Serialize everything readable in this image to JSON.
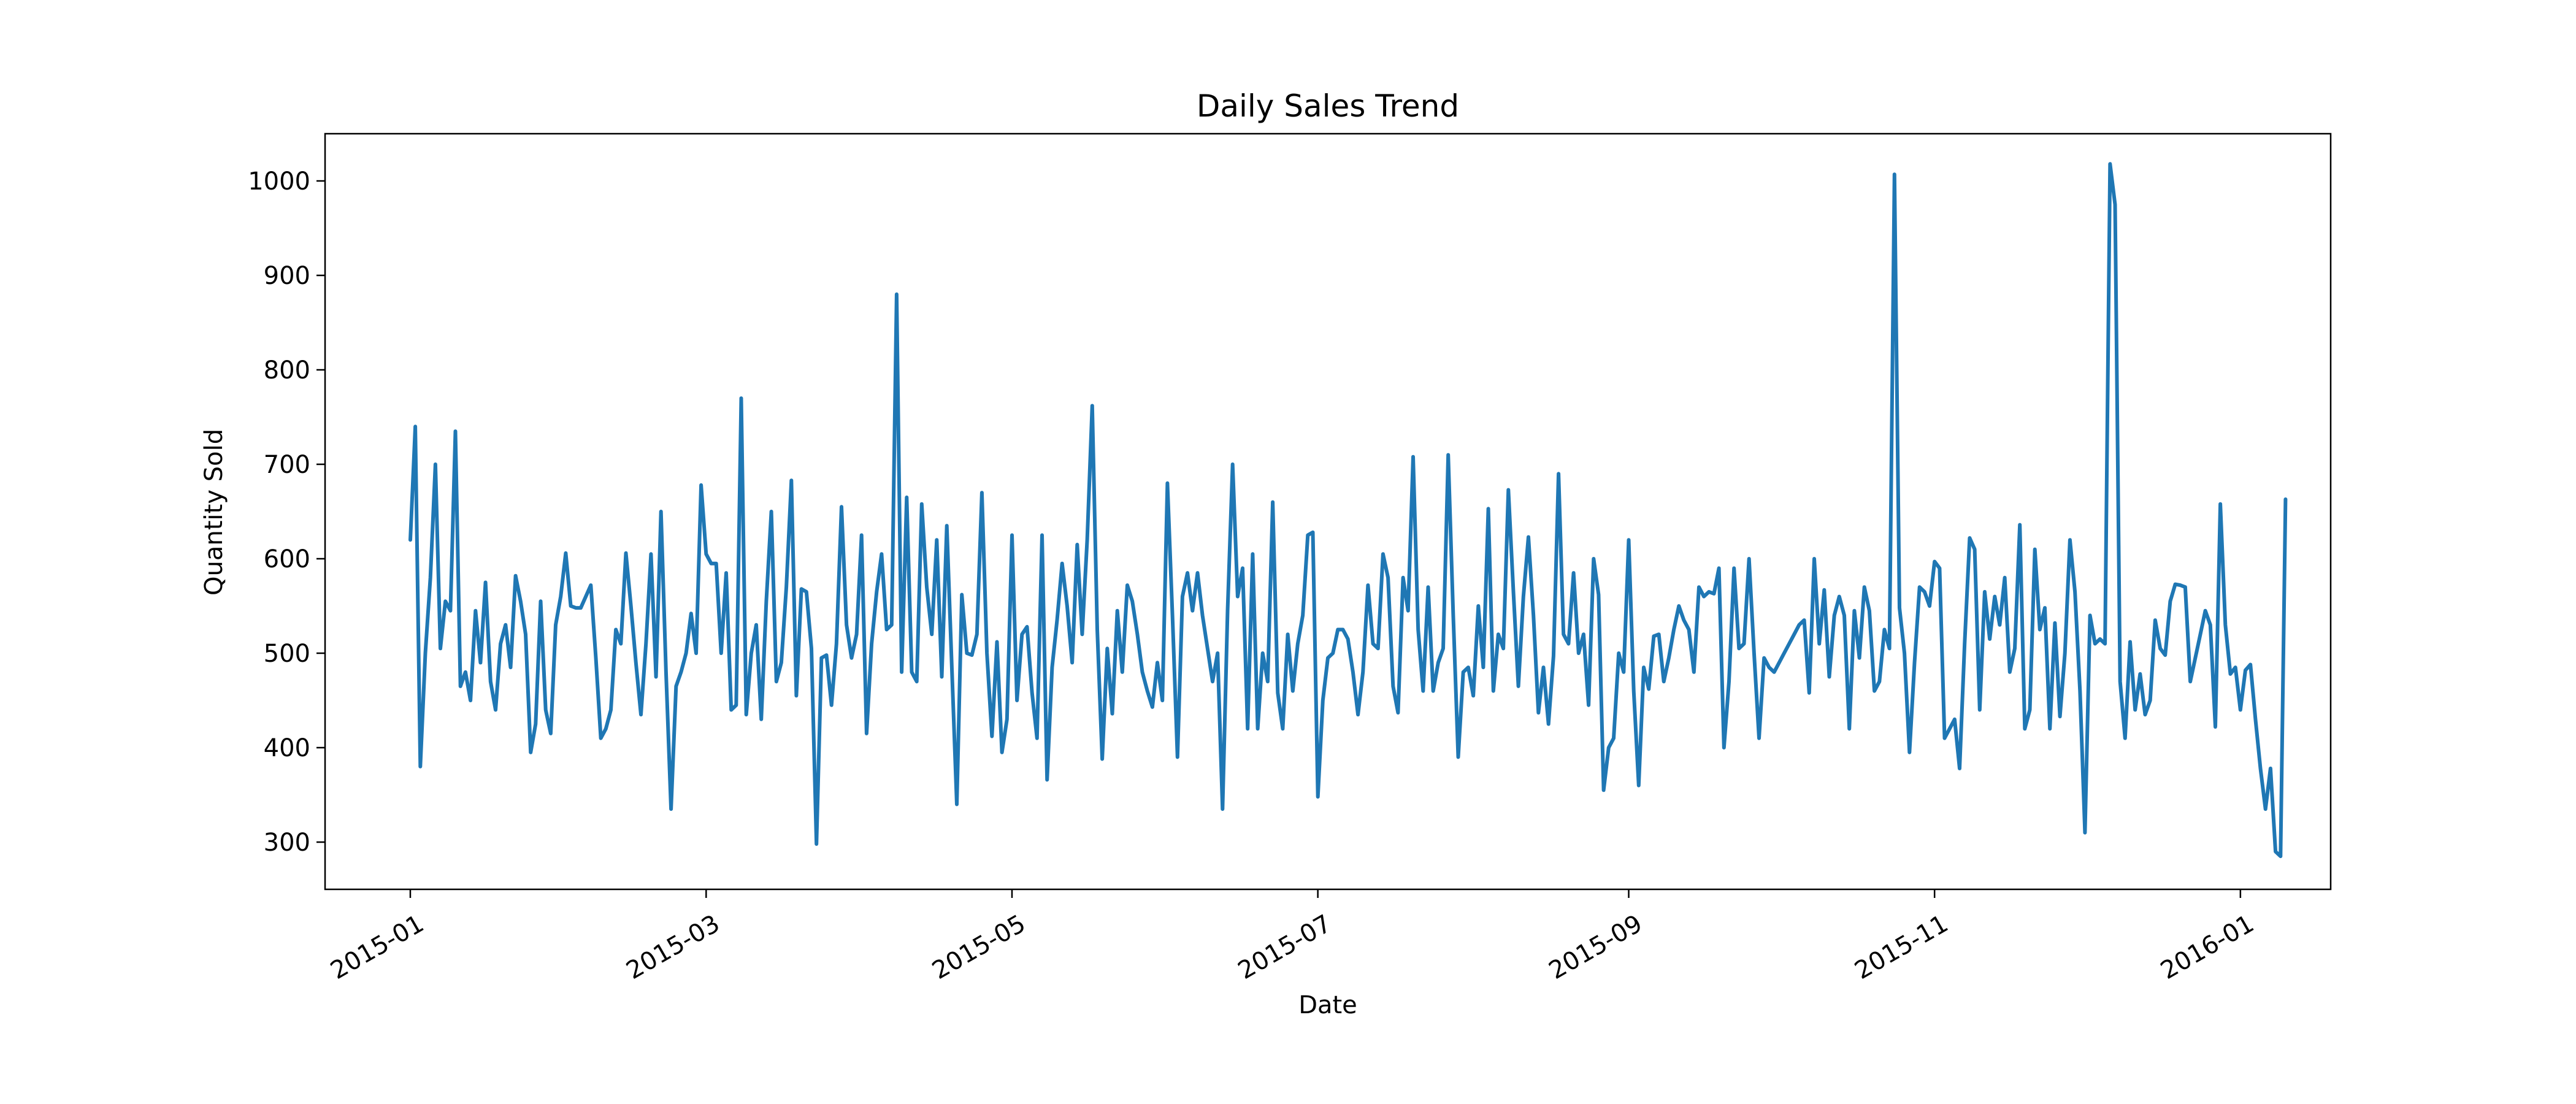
{
  "chart_data": {
    "type": "line",
    "title": "Daily Sales Trend",
    "xlabel": "Date",
    "ylabel": "Quantity Sold",
    "x_range": [
      "2014-12-15",
      "2016-01-19"
    ],
    "ylim": [
      250,
      1050
    ],
    "x_ticks": [
      "2015-01",
      "2015-03",
      "2015-05",
      "2015-07",
      "2015-09",
      "2015-11",
      "2016-01"
    ],
    "y_ticks": [
      300,
      400,
      500,
      600,
      700,
      800,
      900,
      1000
    ],
    "grid": false,
    "line_color": "#1f77b4",
    "series": [
      {
        "x_start": "2015-01-01",
        "x_step_days": 1,
        "values": [
          620,
          740,
          380,
          500,
          580,
          700,
          505,
          555,
          545,
          735,
          465,
          480,
          450,
          545,
          490,
          575,
          470,
          440,
          510,
          530,
          485,
          582,
          555,
          520,
          395,
          425,
          555,
          440,
          415,
          530,
          560,
          606,
          550,
          548,
          548,
          560,
          572,
          495,
          410,
          420,
          440,
          525,
          510,
          606,
          550,
          490,
          435,
          510,
          605,
          475,
          650,
          480,
          335,
          465,
          480,
          500,
          542,
          500,
          678,
          605,
          595,
          595,
          500,
          585,
          440,
          445,
          770,
          435,
          500,
          530,
          430,
          555,
          650,
          470,
          490,
          570,
          683,
          455,
          568,
          565,
          505,
          298,
          495,
          498,
          445,
          510,
          655,
          530,
          495,
          520,
          625,
          415,
          510,
          565,
          605,
          525,
          530,
          880,
          480,
          665,
          480,
          470,
          658,
          570,
          520,
          620,
          475,
          635,
          485,
          340,
          562,
          500,
          498,
          520,
          670,
          500,
          412,
          512,
          395,
          430,
          625,
          450,
          520,
          528,
          458,
          410,
          625,
          366,
          485,
          535,
          595,
          550,
          490,
          615,
          520,
          620,
          762,
          525,
          388,
          505,
          436,
          545,
          480,
          572,
          555,
          520,
          480,
          460,
          443,
          490,
          450,
          680,
          540,
          390,
          560,
          585,
          545,
          585,
          540,
          505,
          470,
          500,
          335,
          545,
          700,
          560,
          590,
          420,
          605,
          420,
          500,
          470,
          660,
          458,
          420,
          520,
          460,
          510,
          540,
          625,
          628,
          348,
          450,
          495,
          500,
          525,
          525,
          515,
          480,
          435,
          480,
          572,
          510,
          505,
          605,
          580,
          465,
          437,
          580,
          545,
          708,
          525,
          460,
          570,
          460,
          490,
          505,
          710,
          540,
          390,
          480,
          485,
          455,
          550,
          485,
          653,
          460,
          520,
          505,
          673,
          565,
          465,
          560,
          623,
          540,
          437,
          485,
          425,
          497,
          690,
          520,
          510,
          585,
          500,
          520,
          445,
          600,
          562,
          355,
          400,
          410,
          500,
          480,
          620,
          460,
          360,
          485,
          462,
          518,
          520,
          470,
          495,
          525,
          550,
          535,
          525,
          480,
          570,
          560,
          565,
          563,
          590,
          400,
          470,
          590,
          505,
          510,
          600,
          500,
          410,
          495,
          485,
          480,
          490,
          500,
          510,
          520,
          530,
          535,
          458,
          600,
          510,
          567,
          475,
          540,
          560,
          540,
          420,
          545,
          495,
          570,
          545,
          460,
          470,
          525,
          505,
          1007,
          548,
          500,
          395,
          490,
          570,
          565,
          550,
          597,
          590,
          410,
          420,
          430,
          378,
          510,
          622,
          610,
          440,
          565,
          515,
          560,
          530,
          580,
          480,
          505,
          636,
          420,
          440,
          610,
          525,
          548,
          420,
          532,
          433,
          500,
          620,
          565,
          460,
          310,
          540,
          510,
          515,
          510,
          1018,
          975,
          470,
          410,
          512,
          440,
          478,
          435,
          450,
          535,
          505,
          498,
          555,
          573,
          572,
          570,
          470,
          495,
          520,
          545,
          530,
          422,
          658,
          530,
          478,
          485,
          440,
          482,
          488,
          430,
          378,
          335,
          378,
          290,
          285,
          663
        ]
      }
    ]
  }
}
